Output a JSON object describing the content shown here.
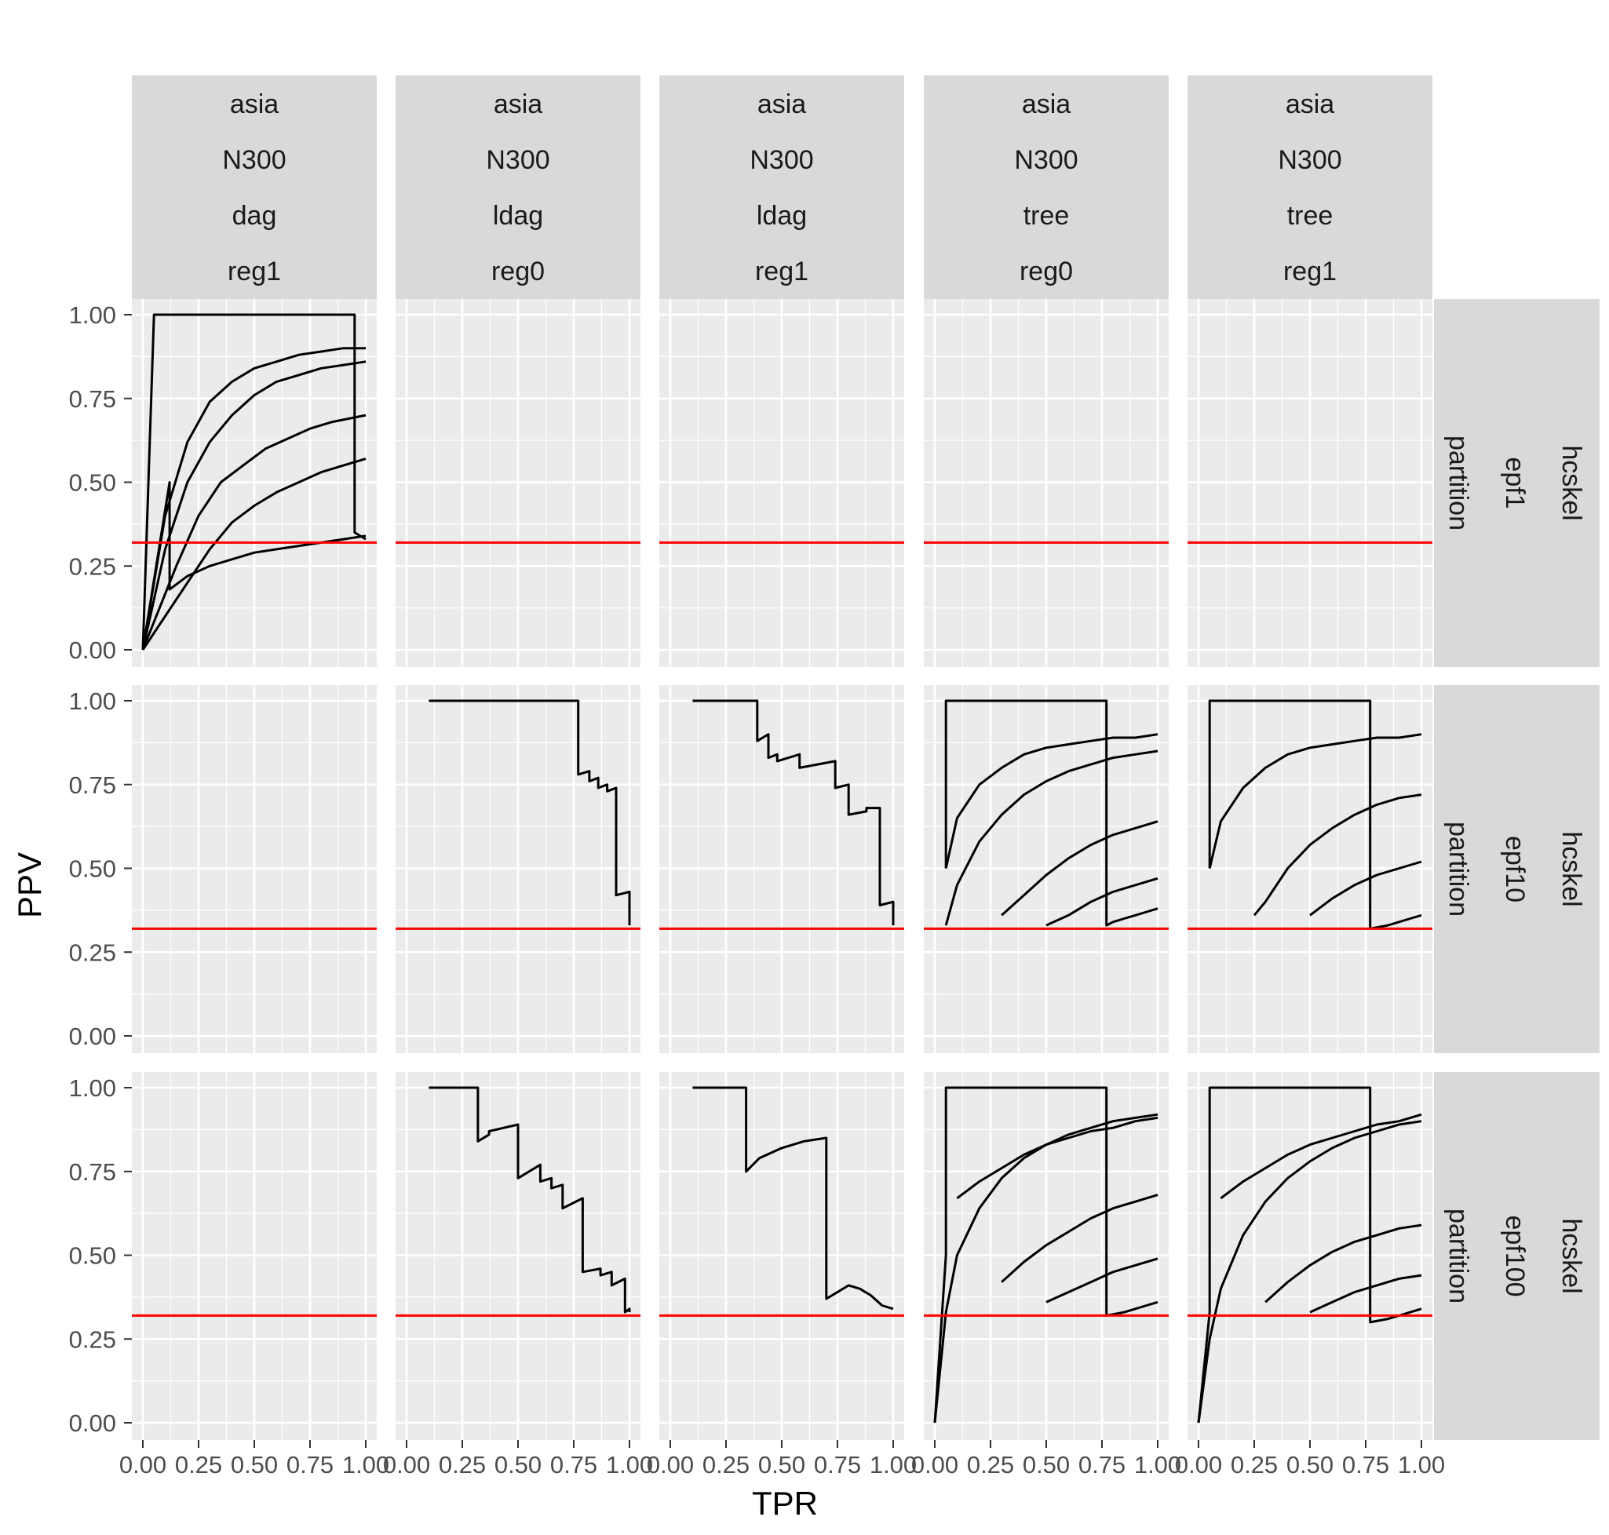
{
  "chart_data": {
    "type": "line",
    "xlabel": "TPR",
    "ylabel": "PPV",
    "xlim": [
      0,
      1
    ],
    "ylim": [
      0,
      1
    ],
    "x_ticks": [
      "0.00",
      "0.25",
      "0.50",
      "0.75",
      "1.00"
    ],
    "y_ticks": [
      "0.00",
      "0.25",
      "0.50",
      "0.75",
      "1.00"
    ],
    "grid": true,
    "reference_line": {
      "y": 0.32,
      "color": "#ff0000"
    },
    "line_color": "#000000",
    "col_facets": [
      {
        "lines": [
          "asia",
          "N300",
          "dag",
          "reg1"
        ]
      },
      {
        "lines": [
          "asia",
          "N300",
          "ldag",
          "reg0"
        ]
      },
      {
        "lines": [
          "asia",
          "N300",
          "ldag",
          "reg1"
        ]
      },
      {
        "lines": [
          "asia",
          "N300",
          "tree",
          "reg0"
        ]
      },
      {
        "lines": [
          "asia",
          "N300",
          "tree",
          "reg1"
        ]
      }
    ],
    "row_facets": [
      {
        "lines": [
          "hcskel",
          "epf1",
          "partition"
        ]
      },
      {
        "lines": [
          "hcskel",
          "epf10",
          "partition"
        ]
      },
      {
        "lines": [
          "hcskel",
          "epf100",
          "partition"
        ]
      }
    ],
    "panels": [
      {
        "row": 0,
        "col": 0,
        "series": [
          {
            "x": [
              0.0,
              0.05,
              0.05,
              0.95,
              0.95,
              1.0
            ],
            "y": [
              0.0,
              1.0,
              1.0,
              1.0,
              0.35,
              0.33
            ]
          },
          {
            "x": [
              0.0,
              0.12,
              0.12,
              0.2,
              0.3,
              0.4,
              0.5,
              0.6,
              0.7,
              0.8,
              0.9,
              1.0
            ],
            "y": [
              0.0,
              0.5,
              0.18,
              0.22,
              0.25,
              0.27,
              0.29,
              0.3,
              0.31,
              0.32,
              0.33,
              0.34
            ]
          },
          {
            "x": [
              0.0,
              0.1,
              0.2,
              0.3,
              0.4,
              0.5,
              0.6,
              0.7,
              0.8,
              0.9,
              1.0
            ],
            "y": [
              0.0,
              0.4,
              0.62,
              0.74,
              0.8,
              0.84,
              0.86,
              0.88,
              0.89,
              0.9,
              0.9
            ]
          },
          {
            "x": [
              0.0,
              0.1,
              0.2,
              0.3,
              0.4,
              0.5,
              0.6,
              0.7,
              0.8,
              0.9,
              1.0
            ],
            "y": [
              0.0,
              0.3,
              0.5,
              0.62,
              0.7,
              0.76,
              0.8,
              0.82,
              0.84,
              0.85,
              0.86
            ]
          },
          {
            "x": [
              0.0,
              0.15,
              0.25,
              0.35,
              0.45,
              0.55,
              0.65,
              0.75,
              0.85,
              1.0
            ],
            "y": [
              0.0,
              0.25,
              0.4,
              0.5,
              0.55,
              0.6,
              0.63,
              0.66,
              0.68,
              0.7
            ]
          },
          {
            "x": [
              0.0,
              0.2,
              0.3,
              0.4,
              0.5,
              0.6,
              0.7,
              0.8,
              0.9,
              1.0
            ],
            "y": [
              0.0,
              0.2,
              0.3,
              0.38,
              0.43,
              0.47,
              0.5,
              0.53,
              0.55,
              0.57
            ]
          }
        ]
      },
      {
        "row": 0,
        "col": 1,
        "series": []
      },
      {
        "row": 0,
        "col": 2,
        "series": []
      },
      {
        "row": 0,
        "col": 3,
        "series": []
      },
      {
        "row": 0,
        "col": 4,
        "series": []
      },
      {
        "row": 1,
        "col": 0,
        "series": []
      },
      {
        "row": 1,
        "col": 1,
        "series": [
          {
            "x": [
              0.1,
              0.77,
              0.77,
              0.82,
              0.82,
              0.86,
              0.86,
              0.9,
              0.9,
              0.94,
              0.94,
              1.0,
              1.0
            ],
            "y": [
              1.0,
              1.0,
              0.78,
              0.79,
              0.76,
              0.77,
              0.74,
              0.75,
              0.73,
              0.74,
              0.42,
              0.43,
              0.33
            ]
          }
        ]
      },
      {
        "row": 1,
        "col": 2,
        "series": [
          {
            "x": [
              0.1,
              0.39,
              0.39,
              0.44,
              0.44,
              0.48,
              0.48,
              0.58,
              0.58,
              0.74,
              0.74,
              0.8,
              0.8,
              0.88,
              0.88,
              0.94,
              0.94,
              1.0,
              1.0
            ],
            "y": [
              1.0,
              1.0,
              0.88,
              0.9,
              0.83,
              0.84,
              0.82,
              0.84,
              0.8,
              0.82,
              0.74,
              0.75,
              0.66,
              0.67,
              0.68,
              0.68,
              0.39,
              0.4,
              0.33
            ]
          }
        ]
      },
      {
        "row": 1,
        "col": 3,
        "series": [
          {
            "x": [
              0.05,
              0.05,
              0.77,
              0.77,
              0.8,
              0.85,
              0.9,
              0.95,
              1.0
            ],
            "y": [
              0.5,
              1.0,
              1.0,
              0.33,
              0.34,
              0.35,
              0.36,
              0.37,
              0.38
            ]
          },
          {
            "x": [
              0.05,
              0.1,
              0.2,
              0.3,
              0.4,
              0.5,
              0.6,
              0.7,
              0.8,
              0.9,
              1.0
            ],
            "y": [
              0.5,
              0.65,
              0.75,
              0.8,
              0.84,
              0.86,
              0.87,
              0.88,
              0.89,
              0.89,
              0.9
            ]
          },
          {
            "x": [
              0.05,
              0.1,
              0.2,
              0.3,
              0.4,
              0.5,
              0.6,
              0.7,
              0.8,
              0.9,
              1.0
            ],
            "y": [
              0.33,
              0.45,
              0.58,
              0.66,
              0.72,
              0.76,
              0.79,
              0.81,
              0.83,
              0.84,
              0.85
            ]
          },
          {
            "x": [
              0.3,
              0.4,
              0.5,
              0.6,
              0.7,
              0.8,
              0.9,
              1.0
            ],
            "y": [
              0.36,
              0.42,
              0.48,
              0.53,
              0.57,
              0.6,
              0.62,
              0.64
            ]
          },
          {
            "x": [
              0.5,
              0.6,
              0.7,
              0.8,
              0.9,
              1.0
            ],
            "y": [
              0.33,
              0.36,
              0.4,
              0.43,
              0.45,
              0.47
            ]
          }
        ]
      },
      {
        "row": 1,
        "col": 4,
        "series": [
          {
            "x": [
              0.05,
              0.05,
              0.77,
              0.77,
              0.85,
              0.9,
              0.95,
              1.0
            ],
            "y": [
              0.5,
              1.0,
              1.0,
              0.32,
              0.33,
              0.34,
              0.35,
              0.36
            ]
          },
          {
            "x": [
              0.05,
              0.1,
              0.2,
              0.3,
              0.4,
              0.5,
              0.6,
              0.7,
              0.8,
              0.9,
              1.0
            ],
            "y": [
              0.5,
              0.64,
              0.74,
              0.8,
              0.84,
              0.86,
              0.87,
              0.88,
              0.89,
              0.89,
              0.9
            ]
          },
          {
            "x": [
              0.25,
              0.3,
              0.4,
              0.5,
              0.6,
              0.7,
              0.8,
              0.9,
              1.0
            ],
            "y": [
              0.36,
              0.4,
              0.5,
              0.57,
              0.62,
              0.66,
              0.69,
              0.71,
              0.72
            ]
          },
          {
            "x": [
              0.5,
              0.6,
              0.7,
              0.8,
              0.9,
              1.0
            ],
            "y": [
              0.36,
              0.41,
              0.45,
              0.48,
              0.5,
              0.52
            ]
          }
        ]
      },
      {
        "row": 2,
        "col": 0,
        "series": []
      },
      {
        "row": 2,
        "col": 1,
        "series": [
          {
            "x": [
              0.1,
              0.32,
              0.32,
              0.37,
              0.37,
              0.5,
              0.5,
              0.6,
              0.6,
              0.65,
              0.65,
              0.7,
              0.7,
              0.79,
              0.79,
              0.87,
              0.87,
              0.92,
              0.92,
              0.98,
              0.98,
              1.0,
              1.0
            ],
            "y": [
              1.0,
              1.0,
              0.84,
              0.86,
              0.87,
              0.89,
              0.73,
              0.77,
              0.72,
              0.73,
              0.7,
              0.71,
              0.64,
              0.67,
              0.45,
              0.46,
              0.44,
              0.45,
              0.41,
              0.43,
              0.33,
              0.34,
              0.33
            ]
          }
        ]
      },
      {
        "row": 2,
        "col": 2,
        "series": [
          {
            "x": [
              0.1,
              0.34,
              0.34,
              0.4,
              0.5,
              0.6,
              0.7,
              0.7,
              0.75,
              0.8,
              0.85,
              0.9,
              0.95,
              1.0
            ],
            "y": [
              1.0,
              1.0,
              0.75,
              0.79,
              0.82,
              0.84,
              0.85,
              0.37,
              0.39,
              0.41,
              0.4,
              0.38,
              0.35,
              0.34
            ]
          }
        ]
      },
      {
        "row": 2,
        "col": 3,
        "series": [
          {
            "x": [
              0.0,
              0.05,
              0.05,
              0.77,
              0.77,
              0.85,
              0.9,
              0.95,
              1.0
            ],
            "y": [
              0.0,
              0.5,
              1.0,
              1.0,
              0.32,
              0.33,
              0.34,
              0.35,
              0.36
            ]
          },
          {
            "x": [
              0.0,
              0.05,
              0.1,
              0.2,
              0.3,
              0.4,
              0.5,
              0.6,
              0.7,
              0.8,
              0.9,
              1.0
            ],
            "y": [
              0.0,
              0.33,
              0.5,
              0.64,
              0.73,
              0.79,
              0.83,
              0.86,
              0.88,
              0.9,
              0.91,
              0.92
            ]
          },
          {
            "x": [
              0.1,
              0.2,
              0.3,
              0.4,
              0.5,
              0.6,
              0.7,
              0.8,
              0.9,
              1.0
            ],
            "y": [
              0.67,
              0.72,
              0.76,
              0.8,
              0.83,
              0.85,
              0.87,
              0.88,
              0.9,
              0.91
            ]
          },
          {
            "x": [
              0.3,
              0.4,
              0.5,
              0.6,
              0.7,
              0.8,
              0.9,
              1.0
            ],
            "y": [
              0.42,
              0.48,
              0.53,
              0.57,
              0.61,
              0.64,
              0.66,
              0.68
            ]
          },
          {
            "x": [
              0.5,
              0.6,
              0.7,
              0.8,
              0.9,
              1.0
            ],
            "y": [
              0.36,
              0.39,
              0.42,
              0.45,
              0.47,
              0.49
            ]
          }
        ]
      },
      {
        "row": 2,
        "col": 4,
        "series": [
          {
            "x": [
              0.0,
              0.05,
              0.05,
              0.77,
              0.77,
              0.85,
              0.9,
              0.95,
              1.0
            ],
            "y": [
              0.0,
              0.33,
              1.0,
              1.0,
              0.3,
              0.31,
              0.32,
              0.33,
              0.34
            ]
          },
          {
            "x": [
              0.0,
              0.05,
              0.1,
              0.2,
              0.3,
              0.4,
              0.5,
              0.6,
              0.7,
              0.8,
              0.9,
              1.0
            ],
            "y": [
              0.0,
              0.25,
              0.4,
              0.56,
              0.66,
              0.73,
              0.78,
              0.82,
              0.85,
              0.87,
              0.89,
              0.9
            ]
          },
          {
            "x": [
              0.1,
              0.2,
              0.3,
              0.4,
              0.5,
              0.6,
              0.7,
              0.8,
              0.9,
              1.0
            ],
            "y": [
              0.67,
              0.72,
              0.76,
              0.8,
              0.83,
              0.85,
              0.87,
              0.89,
              0.9,
              0.92
            ]
          },
          {
            "x": [
              0.3,
              0.4,
              0.5,
              0.6,
              0.7,
              0.8,
              0.9,
              1.0
            ],
            "y": [
              0.36,
              0.42,
              0.47,
              0.51,
              0.54,
              0.56,
              0.58,
              0.59
            ]
          },
          {
            "x": [
              0.5,
              0.6,
              0.7,
              0.8,
              0.9,
              1.0
            ],
            "y": [
              0.33,
              0.36,
              0.39,
              0.41,
              0.43,
              0.44
            ]
          }
        ]
      }
    ]
  }
}
